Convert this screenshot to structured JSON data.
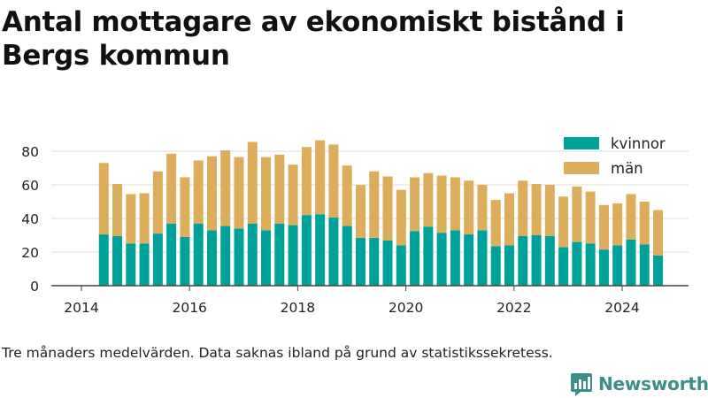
{
  "title": "Antal mottagare av ekonomiskt bistånd i Bergs kommun",
  "note": "Tre månaders medelvärden. Data saknas ibland på grund av statistikssekretess.",
  "brand": "Newsworthy",
  "chart_data": {
    "type": "bar",
    "stacked": true,
    "x_tick_labels": [
      "2014",
      "2016",
      "2018",
      "2020",
      "2022",
      "2024"
    ],
    "y_ticks": [
      0,
      20,
      40,
      60,
      80
    ],
    "ylim": [
      0,
      90
    ],
    "grid": "horizontal",
    "legend_position": "top-right",
    "x": [
      "2014-05",
      "2014-08",
      "2014-11",
      "2015-02",
      "2015-05",
      "2015-08",
      "2015-11",
      "2016-02",
      "2016-05",
      "2016-08",
      "2016-11",
      "2017-02",
      "2017-05",
      "2017-08",
      "2017-11",
      "2018-02",
      "2018-05",
      "2018-08",
      "2018-11",
      "2019-02",
      "2019-05",
      "2019-08",
      "2019-11",
      "2020-02",
      "2020-05",
      "2020-08",
      "2020-11",
      "2021-02",
      "2021-05",
      "2021-08",
      "2021-11",
      "2022-02",
      "2022-05",
      "2022-08",
      "2022-11",
      "2023-02",
      "2023-05",
      "2023-08",
      "2023-11",
      "2024-02",
      "2024-05",
      "2024-08"
    ],
    "series": [
      {
        "name": "kvinnor",
        "color": "#00a19a",
        "values": [
          30.5,
          29.5,
          25,
          25,
          31,
          37,
          29,
          37,
          33,
          35.5,
          34,
          37,
          33,
          37,
          36,
          42,
          42.5,
          40.5,
          35.5,
          28.5,
          28.5,
          27,
          24,
          32.5,
          35,
          31.5,
          33,
          30.5,
          33,
          23.5,
          24,
          29.5,
          30,
          29.5,
          23,
          26,
          25,
          21.5,
          24,
          27.5,
          24.5,
          18
        ]
      },
      {
        "name": "män",
        "color": "#dcad5a",
        "values": [
          42.5,
          31,
          29.5,
          30,
          37,
          41.5,
          35.5,
          37.5,
          44,
          45,
          42.5,
          48.5,
          43.5,
          41,
          36,
          40.5,
          44,
          43.5,
          36,
          31.5,
          39.5,
          38,
          33,
          32,
          32,
          34,
          31.5,
          32,
          27,
          27.5,
          31,
          33,
          30.5,
          30.5,
          30,
          33,
          31,
          26.5,
          25,
          27,
          25.5,
          27
        ]
      }
    ]
  }
}
